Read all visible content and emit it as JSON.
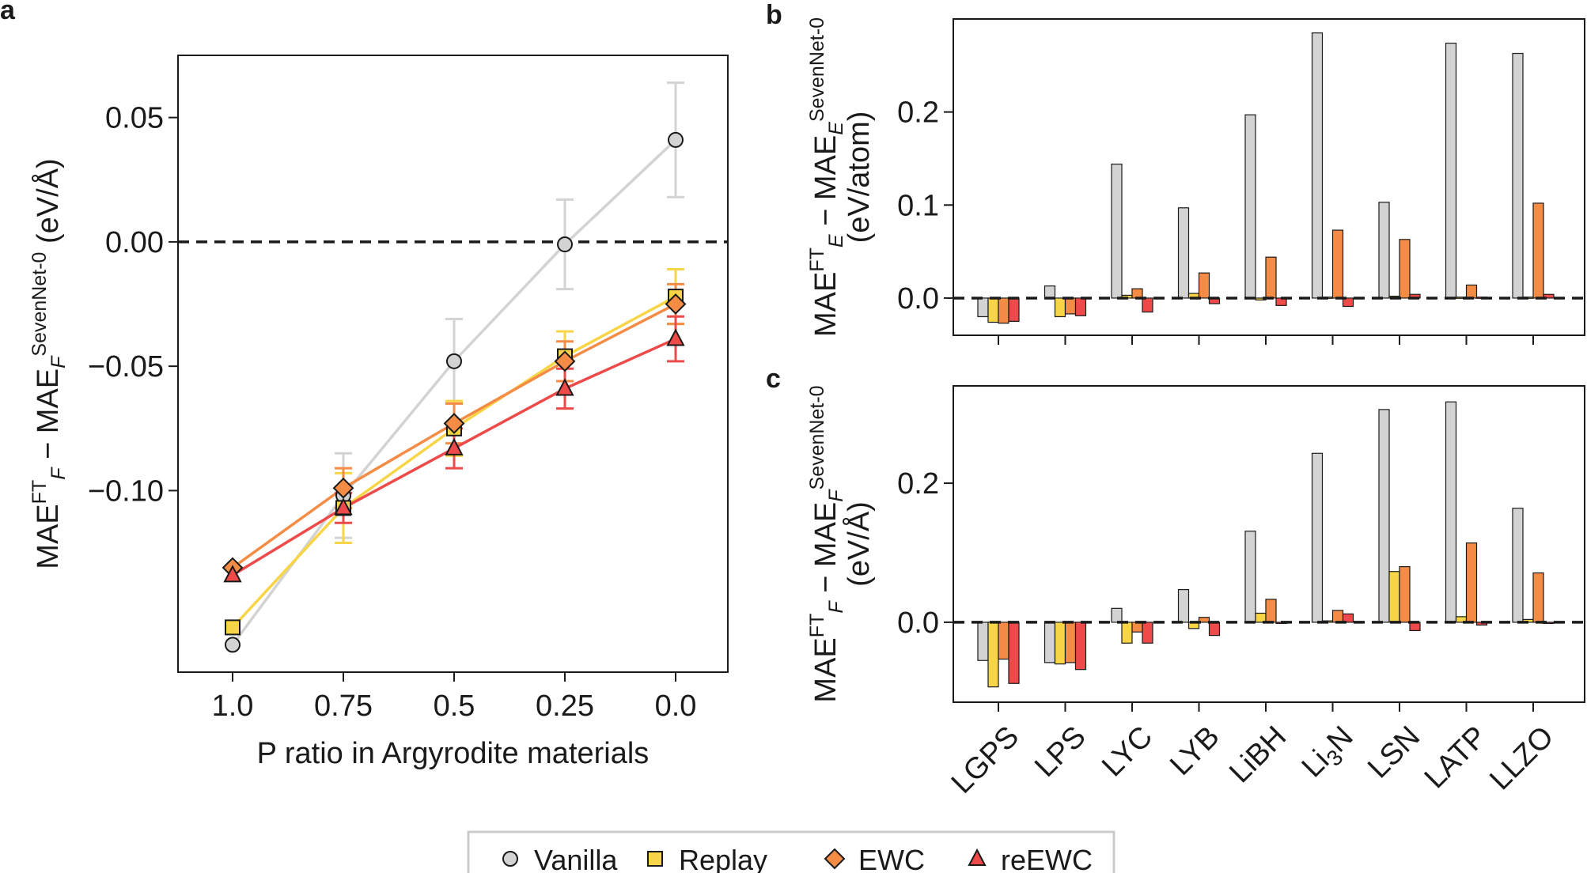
{
  "chart_data": [
    {
      "panel": "a",
      "type": "line",
      "x_categories": [
        "1.0",
        "0.75",
        "0.5",
        "0.25",
        "0.0"
      ],
      "xlabel": "P ratio in Argyrodite materials",
      "ylabel": {
        "main": "MAE",
        "sup1": "FT",
        "sub1": "F",
        "sep": " − MAE",
        "sub2": "F",
        "sup2": "SevenNet-0",
        "unit": "  (eV/Å)"
      },
      "yticks": [
        "0.05",
        "0.00",
        "−0.05",
        "−0.10"
      ],
      "ytick_values": [
        0.05,
        0.0,
        -0.05,
        -0.1
      ],
      "ylim": [
        -0.173,
        0.075
      ],
      "reference_line": 0.0,
      "series": [
        {
          "name": "Vanilla",
          "color": "#d3d3d3",
          "marker": "circle",
          "values": [
            -0.162,
            -0.102,
            -0.048,
            -0.001,
            0.041
          ],
          "errors": [
            0,
            0.017,
            0.017,
            0.018,
            0.023
          ]
        },
        {
          "name": "Replay",
          "color": "#f7d546",
          "marker": "square",
          "values": [
            -0.155,
            -0.107,
            -0.075,
            -0.046,
            -0.022
          ],
          "errors": [
            0,
            0.014,
            0.011,
            0.01,
            0.011
          ]
        },
        {
          "name": "EWC",
          "color": "#f58c46",
          "marker": "diamond",
          "values": [
            -0.131,
            -0.099,
            -0.073,
            -0.048,
            -0.025
          ],
          "errors": [
            0,
            0.008,
            0.008,
            0.008,
            0.008
          ]
        },
        {
          "name": "reEWC",
          "color": "#ee4a4a",
          "marker": "triangle",
          "values": [
            -0.134,
            -0.107,
            -0.083,
            -0.059,
            -0.039
          ],
          "errors": [
            0,
            0.006,
            0.008,
            0.008,
            0.009
          ]
        }
      ]
    },
    {
      "panel": "b",
      "type": "bar",
      "categories": [
        "LGPS",
        "LPS",
        "LYC",
        "LYB",
        "LiBH",
        "Li3N",
        "LSN",
        "LATP",
        "LLZO"
      ],
      "ylabel": {
        "main": "MAE",
        "sup1": "FT",
        "sub1": "E",
        "sep": " − MAE",
        "sub2": "E",
        "sup2": "SevenNet-0",
        "unit": "(eV/atom)"
      },
      "yticks": [
        "0.0",
        "0.1",
        "0.2"
      ],
      "ytick_values": [
        0.0,
        0.1,
        0.2
      ],
      "ylim": [
        -0.04,
        0.3
      ],
      "reference_line": 0.0,
      "series": [
        {
          "name": "Vanilla",
          "color": "#d3d3d3",
          "values": [
            -0.02,
            0.013,
            0.144,
            0.097,
            0.197,
            0.285,
            0.103,
            0.274,
            0.263
          ]
        },
        {
          "name": "Replay",
          "color": "#f7d546",
          "values": [
            -0.026,
            -0.02,
            0.003,
            0.005,
            -0.002,
            0.001,
            0.002,
            0.001,
            0.001
          ]
        },
        {
          "name": "EWC",
          "color": "#f58c46",
          "values": [
            -0.027,
            -0.017,
            0.01,
            0.027,
            0.044,
            0.073,
            0.063,
            0.014,
            0.102
          ]
        },
        {
          "name": "reEWC",
          "color": "#ee4a4a",
          "values": [
            -0.025,
            -0.019,
            -0.015,
            -0.006,
            -0.008,
            -0.009,
            0.004,
            0.001,
            0.004
          ]
        }
      ]
    },
    {
      "panel": "c",
      "type": "bar",
      "categories": [
        "LGPS",
        "LPS",
        "LYC",
        "LYB",
        "LiBH",
        "Li3N",
        "LSN",
        "LATP",
        "LLZO"
      ],
      "ylabel": {
        "main": "MAE",
        "sup1": "FT",
        "sub1": "F",
        "sep": " − MAE",
        "sub2": "F",
        "sup2": "SevenNet-0",
        "unit": "(eV/Å)"
      },
      "yticks": [
        "0.0",
        "0.2"
      ],
      "ytick_values": [
        0.0,
        0.2
      ],
      "ylim": [
        -0.115,
        0.34
      ],
      "reference_line": 0.0,
      "series": [
        {
          "name": "Vanilla",
          "color": "#d3d3d3",
          "values": [
            -0.055,
            -0.058,
            0.02,
            0.047,
            0.131,
            0.243,
            0.306,
            0.317,
            0.164
          ]
        },
        {
          "name": "Replay",
          "color": "#f7d546",
          "values": [
            -0.093,
            -0.06,
            -0.03,
            -0.009,
            0.013,
            0.002,
            0.073,
            0.008,
            0.004
          ]
        },
        {
          "name": "EWC",
          "color": "#f58c46",
          "values": [
            -0.053,
            -0.058,
            -0.014,
            0.007,
            0.033,
            0.017,
            0.08,
            0.114,
            0.071
          ]
        },
        {
          "name": "reEWC",
          "color": "#ee4a4a",
          "values": [
            -0.088,
            -0.068,
            -0.03,
            -0.019,
            0.0,
            0.012,
            -0.012,
            -0.004,
            0.0
          ]
        }
      ]
    }
  ],
  "legend": {
    "items": [
      {
        "label": "Vanilla",
        "marker": "circle",
        "color": "#d3d3d3"
      },
      {
        "label": "Replay",
        "marker": "square",
        "color": "#f7d546"
      },
      {
        "label": "EWC",
        "marker": "diamond",
        "color": "#f58c46"
      },
      {
        "label": "reEWC",
        "marker": "triangle",
        "color": "#ee4a4a"
      }
    ]
  }
}
